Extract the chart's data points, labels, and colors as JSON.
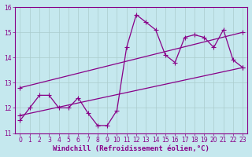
{
  "xlabel": "Windchill (Refroidissement éolien,°C)",
  "xlim": [
    -0.5,
    23.5
  ],
  "ylim": [
    11,
    16
  ],
  "yticks": [
    11,
    12,
    13,
    14,
    15,
    16
  ],
  "xticks": [
    0,
    1,
    2,
    3,
    4,
    5,
    6,
    7,
    8,
    9,
    10,
    11,
    12,
    13,
    14,
    15,
    16,
    17,
    18,
    19,
    20,
    21,
    22,
    23
  ],
  "bg_color": "#c5e8ee",
  "line_color": "#880088",
  "grid_color": "#aacccc",
  "series1_x": [
    0,
    1,
    2,
    3,
    4,
    5,
    6,
    7,
    8,
    9,
    10,
    11,
    12,
    13,
    14,
    15,
    16,
    17,
    18,
    19,
    20,
    21,
    22,
    23
  ],
  "series1_y": [
    11.5,
    12.0,
    12.5,
    12.5,
    12.0,
    12.0,
    12.4,
    11.8,
    11.3,
    11.3,
    11.9,
    14.4,
    15.7,
    15.4,
    15.1,
    14.1,
    13.8,
    14.8,
    14.9,
    14.8,
    14.4,
    15.1,
    13.9,
    13.6
  ],
  "series2_x": [
    0,
    23
  ],
  "series2_y": [
    11.7,
    13.6
  ],
  "series3_x": [
    0,
    23
  ],
  "series3_y": [
    12.8,
    15.0
  ],
  "fontsize_xlabel": 6.5,
  "fontsize_ticks": 5.5,
  "markersize": 2.5,
  "linewidth": 0.9
}
